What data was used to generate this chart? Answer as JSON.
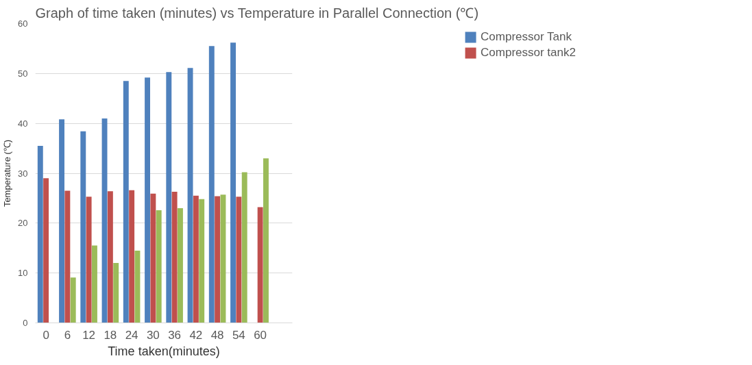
{
  "chart_data": {
    "type": "bar",
    "title": "Graph of time taken (minutes)  vs Temperature in Parallel Connection (℃)",
    "xlabel": "Time taken(minutes)",
    "ylabel": "Temperature (℃)",
    "categories": [
      "0",
      "6",
      "12",
      "18",
      "24",
      "30",
      "36",
      "42",
      "48",
      "54",
      "60",
      null
    ],
    "series": [
      {
        "name": "Compressor Tank",
        "color": "#4f81bd",
        "values": [
          35.5,
          40.8,
          38.4,
          41,
          48.5,
          49.2,
          50.3,
          51.1,
          55.5,
          56.2,
          null,
          null
        ]
      },
      {
        "name": "Compressor tank2",
        "color": "#c0504d",
        "values": [
          29,
          26.5,
          25.3,
          26.4,
          26.6,
          25.9,
          26.3,
          25.5,
          25.4,
          25.3,
          23.2,
          null
        ]
      },
      {
        "color": "#9bbb59",
        "values": [
          null,
          9.1,
          15.5,
          12,
          14.5,
          22.6,
          23,
          24.8,
          25.7,
          30.2,
          33,
          null
        ]
      }
    ],
    "ylim": [
      0,
      60
    ],
    "yticks": [
      0,
      10,
      20,
      30,
      40,
      50,
      60
    ],
    "grid": "y",
    "legend": "top right"
  }
}
